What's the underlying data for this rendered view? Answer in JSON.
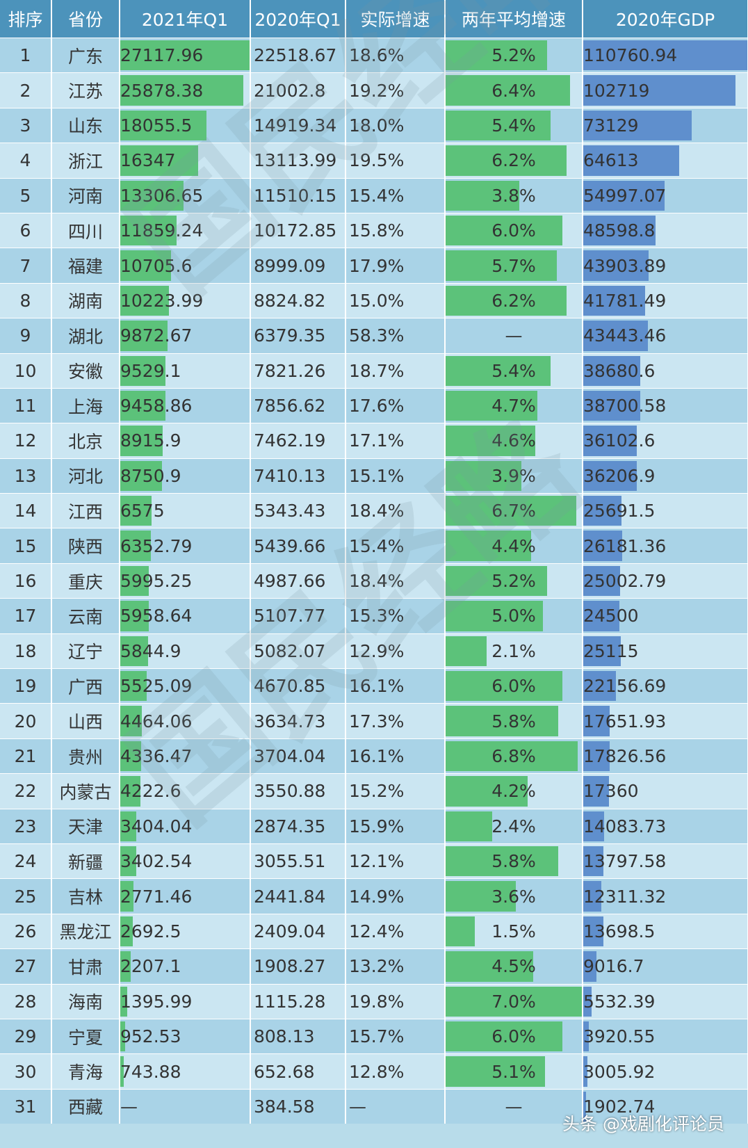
{
  "chart_data": {
    "type": "table",
    "columns": [
      "排序",
      "省份",
      "2021年Q1",
      "2020年Q1",
      "实际增速",
      "两年平均增速",
      "2020年GDP"
    ],
    "rows": [
      {
        "rank": "1",
        "province": "广东",
        "q1_2021": "27117.96",
        "q1_2020": "22518.67",
        "growth": "18.6%",
        "avg_growth": "5.2%",
        "gdp_2020": "110760.94"
      },
      {
        "rank": "2",
        "province": "江苏",
        "q1_2021": "25878.38",
        "q1_2020": "21002.8",
        "growth": "19.2%",
        "avg_growth": "6.4%",
        "gdp_2020": "102719"
      },
      {
        "rank": "3",
        "province": "山东",
        "q1_2021": "18055.5",
        "q1_2020": "14919.34",
        "growth": "18.0%",
        "avg_growth": "5.4%",
        "gdp_2020": "73129"
      },
      {
        "rank": "4",
        "province": "浙江",
        "q1_2021": "16347",
        "q1_2020": "13113.99",
        "growth": "19.5%",
        "avg_growth": "6.2%",
        "gdp_2020": "64613"
      },
      {
        "rank": "5",
        "province": "河南",
        "q1_2021": "13306.65",
        "q1_2020": "11510.15",
        "growth": "15.4%",
        "avg_growth": "3.8%",
        "gdp_2020": "54997.07"
      },
      {
        "rank": "6",
        "province": "四川",
        "q1_2021": "11859.24",
        "q1_2020": "10172.85",
        "growth": "15.8%",
        "avg_growth": "6.0%",
        "gdp_2020": "48598.8"
      },
      {
        "rank": "7",
        "province": "福建",
        "q1_2021": "10705.6",
        "q1_2020": "8999.09",
        "growth": "17.9%",
        "avg_growth": "5.7%",
        "gdp_2020": "43903.89"
      },
      {
        "rank": "8",
        "province": "湖南",
        "q1_2021": "10223.99",
        "q1_2020": "8824.82",
        "growth": "15.0%",
        "avg_growth": "6.2%",
        "gdp_2020": "41781.49"
      },
      {
        "rank": "9",
        "province": "湖北",
        "q1_2021": "9872.67",
        "q1_2020": "6379.35",
        "growth": "58.3%",
        "avg_growth": "—",
        "gdp_2020": "43443.46"
      },
      {
        "rank": "10",
        "province": "安徽",
        "q1_2021": "9529.1",
        "q1_2020": "7821.26",
        "growth": "18.7%",
        "avg_growth": "5.4%",
        "gdp_2020": "38680.6"
      },
      {
        "rank": "11",
        "province": "上海",
        "q1_2021": "9458.86",
        "q1_2020": "7856.62",
        "growth": "17.6%",
        "avg_growth": "4.7%",
        "gdp_2020": "38700.58"
      },
      {
        "rank": "12",
        "province": "北京",
        "q1_2021": "8915.9",
        "q1_2020": "7462.19",
        "growth": "17.1%",
        "avg_growth": "4.6%",
        "gdp_2020": "36102.6"
      },
      {
        "rank": "13",
        "province": "河北",
        "q1_2021": "8750.9",
        "q1_2020": "7410.13",
        "growth": "15.1%",
        "avg_growth": "3.9%",
        "gdp_2020": "36206.9"
      },
      {
        "rank": "14",
        "province": "江西",
        "q1_2021": "6575",
        "q1_2020": "5343.43",
        "growth": "18.4%",
        "avg_growth": "6.7%",
        "gdp_2020": "25691.5"
      },
      {
        "rank": "15",
        "province": "陕西",
        "q1_2021": "6352.79",
        "q1_2020": "5439.66",
        "growth": "15.4%",
        "avg_growth": "4.4%",
        "gdp_2020": "26181.36"
      },
      {
        "rank": "16",
        "province": "重庆",
        "q1_2021": "5995.25",
        "q1_2020": "4987.66",
        "growth": "18.4%",
        "avg_growth": "5.2%",
        "gdp_2020": "25002.79"
      },
      {
        "rank": "17",
        "province": "云南",
        "q1_2021": "5958.64",
        "q1_2020": "5107.77",
        "growth": "15.3%",
        "avg_growth": "5.0%",
        "gdp_2020": "24500"
      },
      {
        "rank": "18",
        "province": "辽宁",
        "q1_2021": "5844.9",
        "q1_2020": "5082.07",
        "growth": "12.9%",
        "avg_growth": "2.1%",
        "gdp_2020": "25115"
      },
      {
        "rank": "19",
        "province": "广西",
        "q1_2021": "5525.09",
        "q1_2020": "4670.85",
        "growth": "16.1%",
        "avg_growth": "6.0%",
        "gdp_2020": "22156.69"
      },
      {
        "rank": "20",
        "province": "山西",
        "q1_2021": "4464.06",
        "q1_2020": "3634.73",
        "growth": "17.3%",
        "avg_growth": "5.8%",
        "gdp_2020": "17651.93"
      },
      {
        "rank": "21",
        "province": "贵州",
        "q1_2021": "4336.47",
        "q1_2020": "3704.04",
        "growth": "16.1%",
        "avg_growth": "6.8%",
        "gdp_2020": "17826.56"
      },
      {
        "rank": "22",
        "province": "内蒙古",
        "q1_2021": "4222.6",
        "q1_2020": "3550.88",
        "growth": "15.2%",
        "avg_growth": "4.2%",
        "gdp_2020": "17360"
      },
      {
        "rank": "23",
        "province": "天津",
        "q1_2021": "3404.04",
        "q1_2020": "2874.35",
        "growth": "15.9%",
        "avg_growth": "2.4%",
        "gdp_2020": "14083.73"
      },
      {
        "rank": "24",
        "province": "新疆",
        "q1_2021": "3402.54",
        "q1_2020": "3055.51",
        "growth": "12.1%",
        "avg_growth": "5.8%",
        "gdp_2020": "13797.58"
      },
      {
        "rank": "25",
        "province": "吉林",
        "q1_2021": "2771.46",
        "q1_2020": "2441.84",
        "growth": "14.9%",
        "avg_growth": "3.6%",
        "gdp_2020": "12311.32"
      },
      {
        "rank": "26",
        "province": "黑龙江",
        "q1_2021": "2692.5",
        "q1_2020": "2409.04",
        "growth": "12.4%",
        "avg_growth": "1.5%",
        "gdp_2020": "13698.5"
      },
      {
        "rank": "27",
        "province": "甘肃",
        "q1_2021": "2207.1",
        "q1_2020": "1908.27",
        "growth": "13.2%",
        "avg_growth": "4.5%",
        "gdp_2020": "9016.7"
      },
      {
        "rank": "28",
        "province": "海南",
        "q1_2021": "1395.99",
        "q1_2020": "1115.28",
        "growth": "19.8%",
        "avg_growth": "7.0%",
        "gdp_2020": "5532.39"
      },
      {
        "rank": "29",
        "province": "宁夏",
        "q1_2021": "952.53",
        "q1_2020": "808.13",
        "growth": "15.7%",
        "avg_growth": "6.0%",
        "gdp_2020": "3920.55"
      },
      {
        "rank": "30",
        "province": "青海",
        "q1_2021": "743.88",
        "q1_2020": "652.68",
        "growth": "12.8%",
        "avg_growth": "5.1%",
        "gdp_2020": "3005.92"
      },
      {
        "rank": "31",
        "province": "西藏",
        "q1_2021": "—",
        "q1_2020": "384.58",
        "growth": "—",
        "avg_growth": "—",
        "gdp_2020": "1902.74"
      }
    ],
    "bar_max": {
      "q1_2021": 27117.96,
      "avg_growth": 7.0,
      "gdp_2020": 110760.94
    }
  },
  "watermark": "国民经略",
  "credit": "头条 @戏剧化评论员",
  "colors": {
    "header": "#4c93bb",
    "row_a": "#a9d3e7",
    "row_b": "#cbe6f2",
    "green_bar": "#5cc27a",
    "blue_bar": "#5f8fcd"
  }
}
